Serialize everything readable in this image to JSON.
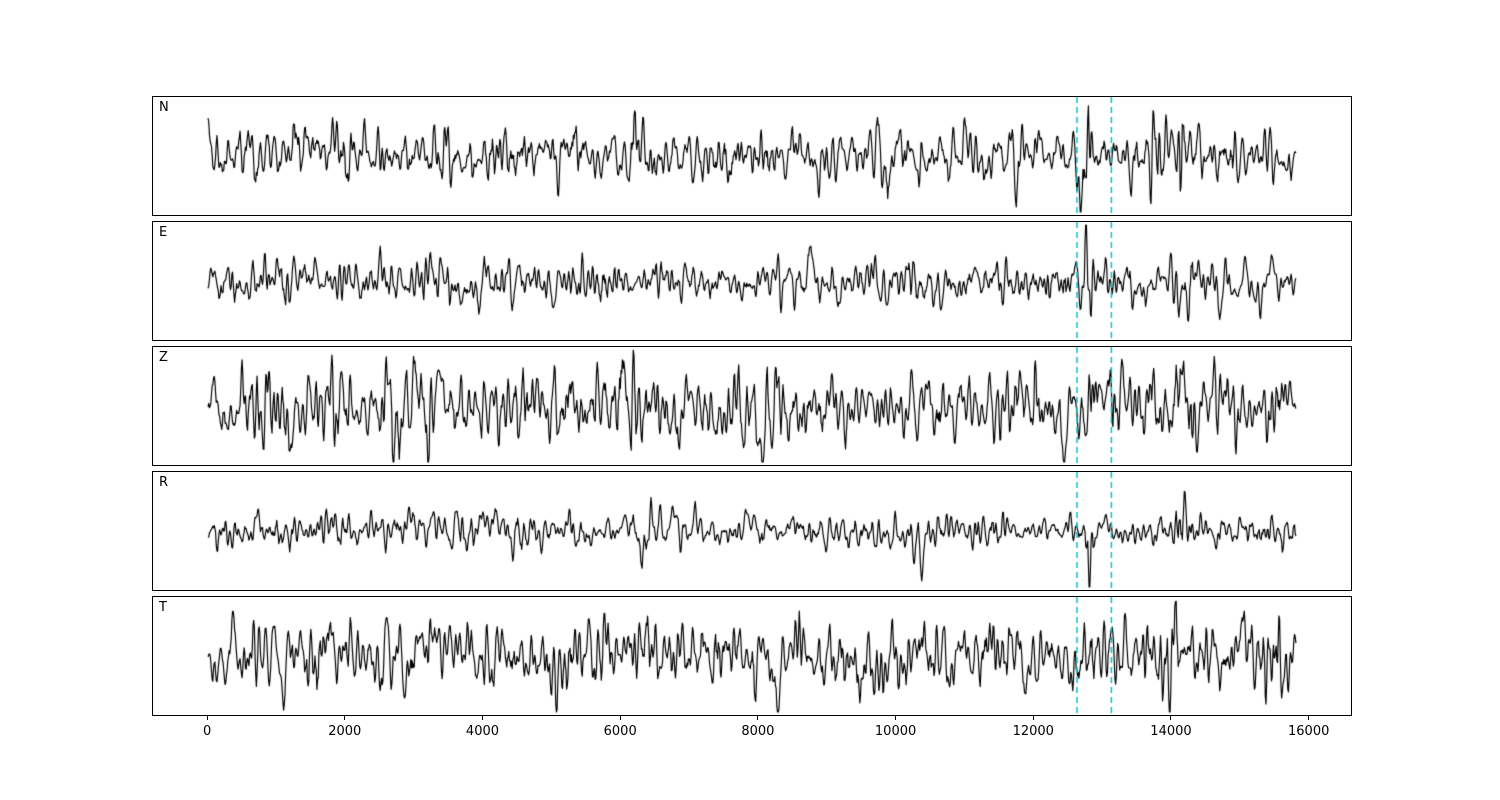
{
  "chart_data": {
    "type": "line",
    "title": "",
    "description": "Five stacked seismogram waveform panels (channels N, E, Z, R, T) of black noisy traces with two cyan dashed vertical pick lines",
    "xlim": [
      -800,
      16600
    ],
    "x_start": 0,
    "x_end": 15800,
    "x_ticks": [
      0,
      2000,
      4000,
      6000,
      8000,
      10000,
      12000,
      14000,
      16000
    ],
    "x_tick_labels": [
      "0",
      "2000",
      "4000",
      "6000",
      "8000",
      "10000",
      "12000",
      "14000",
      "16000"
    ],
    "trace_color": "#000000",
    "pick_lines": {
      "color": "#00c2cb",
      "positions": [
        12620,
        13120
      ],
      "style": "dashed"
    },
    "panels": [
      {
        "label": "N",
        "seed": 1101,
        "amplitude": 0.52,
        "spikes": [
          {
            "x": 12730,
            "mag": 1.9,
            "width": 90
          },
          {
            "x": 14130,
            "mag": 1.0,
            "width": 70
          },
          {
            "x": 3350,
            "mag": 0.7,
            "width": 90
          },
          {
            "x": 6250,
            "mag": 0.8,
            "width": 120
          },
          {
            "x": 8150,
            "mag": 0.5,
            "width": 100
          },
          {
            "x": 9900,
            "mag": 0.5,
            "width": 150
          }
        ]
      },
      {
        "label": "E",
        "seed": 2203,
        "amplitude": 0.42,
        "spikes": [
          {
            "x": 12790,
            "mag": 2.4,
            "width": 70
          },
          {
            "x": 14230,
            "mag": 1.2,
            "width": 80
          },
          {
            "x": 1050,
            "mag": 0.6,
            "width": 90
          },
          {
            "x": 10250,
            "mag": 0.8,
            "width": 90
          },
          {
            "x": 6500,
            "mag": 0.4,
            "width": 150
          }
        ]
      },
      {
        "label": "Z",
        "seed": 3307,
        "amplitude": 0.72,
        "spikes": [
          {
            "x": 6150,
            "mag": 1.0,
            "width": 120
          },
          {
            "x": 3250,
            "mag": 0.6,
            "width": 90
          },
          {
            "x": 11950,
            "mag": 0.6,
            "width": 120
          },
          {
            "x": 13650,
            "mag": 0.5,
            "width": 150
          },
          {
            "x": 8600,
            "mag": 0.4,
            "width": 120
          }
        ]
      },
      {
        "label": "R",
        "seed": 4409,
        "amplitude": 0.34,
        "spikes": [
          {
            "x": 12780,
            "mag": 2.6,
            "width": 70
          },
          {
            "x": 14120,
            "mag": 2.0,
            "width": 80
          },
          {
            "x": 10300,
            "mag": 0.7,
            "width": 90
          },
          {
            "x": 6300,
            "mag": 0.4,
            "width": 150
          }
        ]
      },
      {
        "label": "T",
        "seed": 5511,
        "amplitude": 0.66,
        "spikes": [
          {
            "x": 15420,
            "mag": 1.2,
            "width": 110
          },
          {
            "x": 6250,
            "mag": 0.8,
            "width": 120
          },
          {
            "x": 8250,
            "mag": 0.8,
            "width": 100
          },
          {
            "x": 12700,
            "mag": 0.6,
            "width": 120
          },
          {
            "x": 13950,
            "mag": 0.7,
            "width": 100
          },
          {
            "x": 2600,
            "mag": 0.4,
            "width": 150
          }
        ]
      }
    ]
  }
}
